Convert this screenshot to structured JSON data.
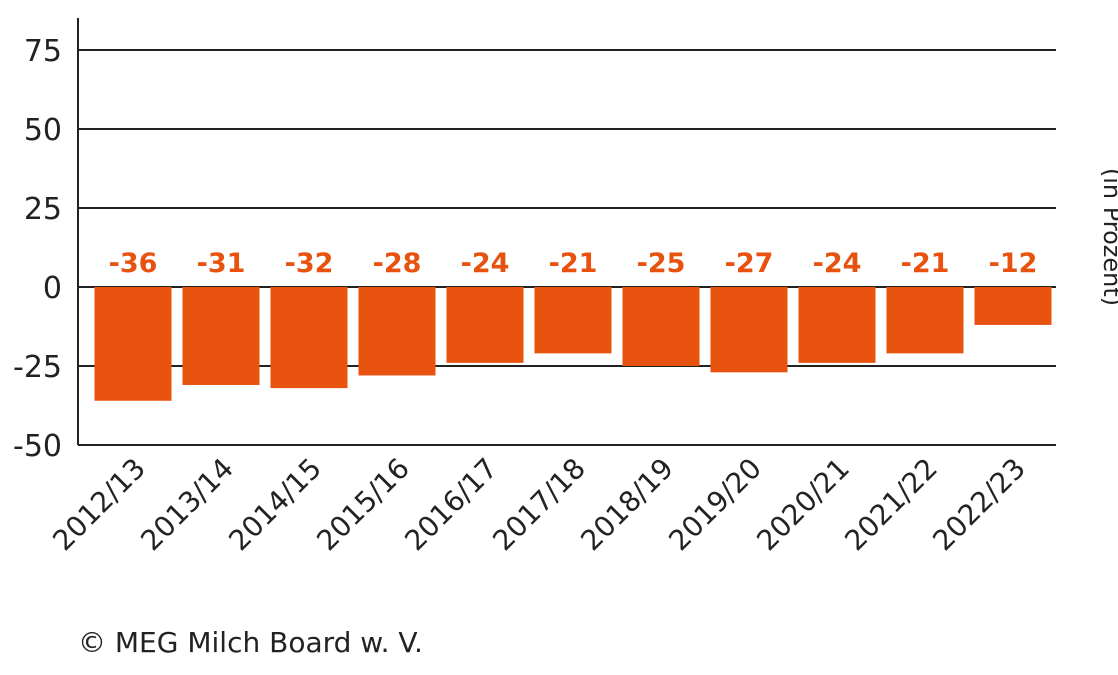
{
  "chart_data": {
    "type": "bar",
    "categories": [
      "2012/13",
      "2013/14",
      "2014/15",
      "2015/16",
      "2016/17",
      "2017/18",
      "2018/19",
      "2019/20",
      "2020/21",
      "2021/22",
      "2022/23"
    ],
    "values": [
      -36,
      -31,
      -32,
      -28,
      -24,
      -21,
      -25,
      -27,
      -24,
      -21,
      -12
    ],
    "data_labels": [
      "-36",
      "-31",
      "-32",
      "-28",
      "-24",
      "-21",
      "-25",
      "-27",
      "-24",
      "-21",
      "-12"
    ],
    "ylabel": "(in Prozent)",
    "ylim": [
      -50,
      80
    ],
    "yticks": [
      75,
      50,
      25,
      0,
      -25,
      -50
    ],
    "ytick_labels": [
      "75",
      "50",
      "25",
      "0",
      "-25",
      "-50"
    ],
    "grid": true,
    "bar_color": "#e8520f",
    "label_color": "#e8520f"
  },
  "credit": "© MEG Milch Board w. V."
}
